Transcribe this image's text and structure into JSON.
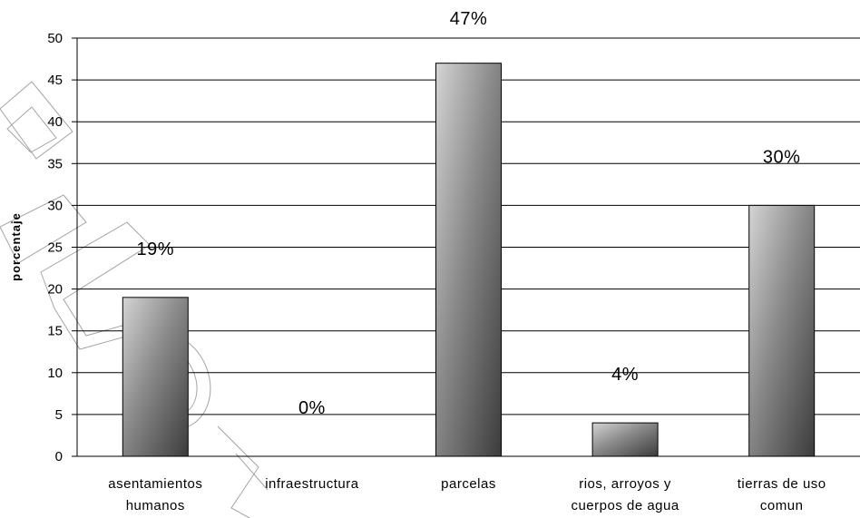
{
  "chart_data": {
    "type": "bar",
    "title": "",
    "xlabel": "",
    "ylabel": "porcentaje",
    "ylim": [
      0,
      50
    ],
    "yticks": [
      0,
      5,
      10,
      15,
      20,
      25,
      30,
      35,
      40,
      45,
      50
    ],
    "grid": true,
    "legend": "none",
    "categories": [
      [
        "asentamientos",
        "humanos"
      ],
      [
        "infraestructura"
      ],
      [
        "parcelas"
      ],
      [
        "rios, arroyos y",
        "cuerpos de agua"
      ],
      [
        "tierras de uso",
        "comun"
      ]
    ],
    "values": [
      19,
      0,
      47,
      4,
      30
    ],
    "data_labels": [
      "19%",
      "0%",
      "47%",
      "4%",
      "30%"
    ],
    "colors": {
      "bar_light": "#d4d4d4",
      "bar_dark": "#3c3c3c",
      "grid": "#000000",
      "axis": "#000000"
    }
  }
}
